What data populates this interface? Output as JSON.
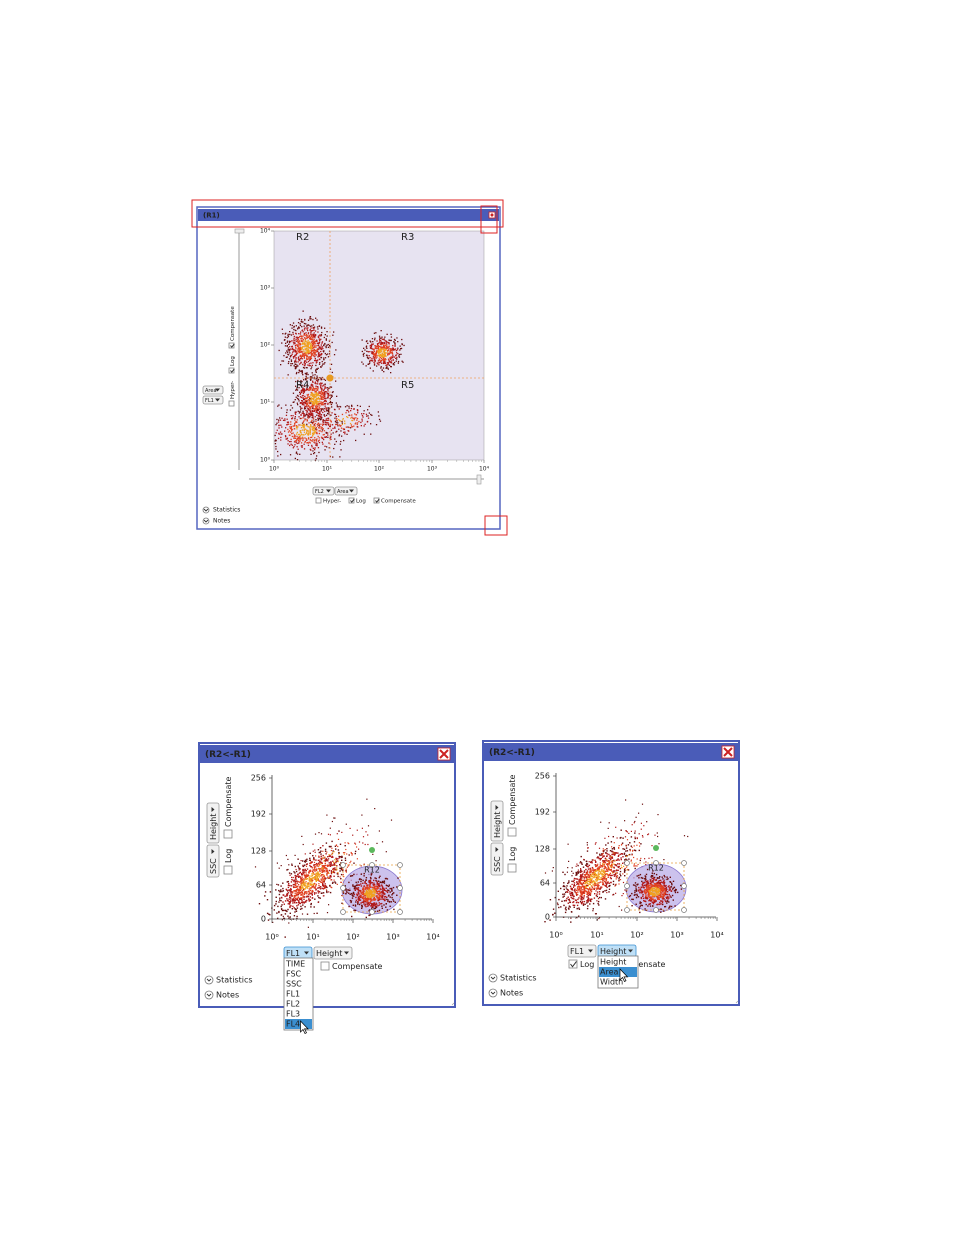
{
  "figures": [
    {
      "title": "(R1)",
      "region_labels": [
        "R2",
        "R3",
        "R4",
        "R5"
      ],
      "y_tick_labels": [
        "10⁰",
        "10¹",
        "10²",
        "10³",
        "10⁴"
      ],
      "x_tick_labels": [
        "10⁰",
        "10¹",
        "10²",
        "10³",
        "10⁴"
      ],
      "y_axis_controls": {
        "parameter": "FL1",
        "measure": "Area",
        "checkboxes": [
          "Hyper-",
          "Log",
          "Compensate"
        ]
      },
      "x_axis_controls": {
        "parameter": "FL2",
        "measure": "Area",
        "checkboxes": [
          "Hyper-",
          "Log",
          "Compensate"
        ]
      },
      "sections": [
        "Statistics",
        "Notes"
      ]
    },
    {
      "title": "(R2<-R1)",
      "gate_label": "R12",
      "y_tick_labels": [
        "0",
        "64",
        "128",
        "192",
        "256"
      ],
      "x_tick_labels": [
        "10⁰",
        "10¹",
        "10²",
        "10³",
        "10⁴"
      ],
      "y_axis_controls": {
        "parameter": "SSC",
        "measure": "Height",
        "checkboxes": [
          "Log",
          "Compensate"
        ]
      },
      "x_axis_controls": {
        "parameter": "FL1",
        "measure": "Height",
        "checkboxes": [
          "Compensate"
        ]
      },
      "dropdown": [
        "TIME",
        "FSC",
        "SSC",
        "FL1",
        "FL2",
        "FL3",
        "FL4"
      ],
      "sections": [
        "Statistics",
        "Notes"
      ]
    },
    {
      "title": "(R2<-R1)",
      "gate_label": "R12",
      "y_tick_labels": [
        "0",
        "64",
        "128",
        "192",
        "256"
      ],
      "x_tick_labels": [
        "10⁰",
        "10¹",
        "10²",
        "10³",
        "10⁴"
      ],
      "y_axis_controls": {
        "parameter": "SSC",
        "measure": "Height",
        "checkboxes": [
          "Log",
          "Compensate"
        ]
      },
      "x_axis_controls": {
        "parameter": "FL1",
        "measure": "Height",
        "checkboxes": [
          "Log",
          "Compensate"
        ]
      },
      "dropdown": [
        "Height",
        "Area",
        "Width"
      ],
      "sections": [
        "Statistics",
        "Notes"
      ]
    }
  ]
}
